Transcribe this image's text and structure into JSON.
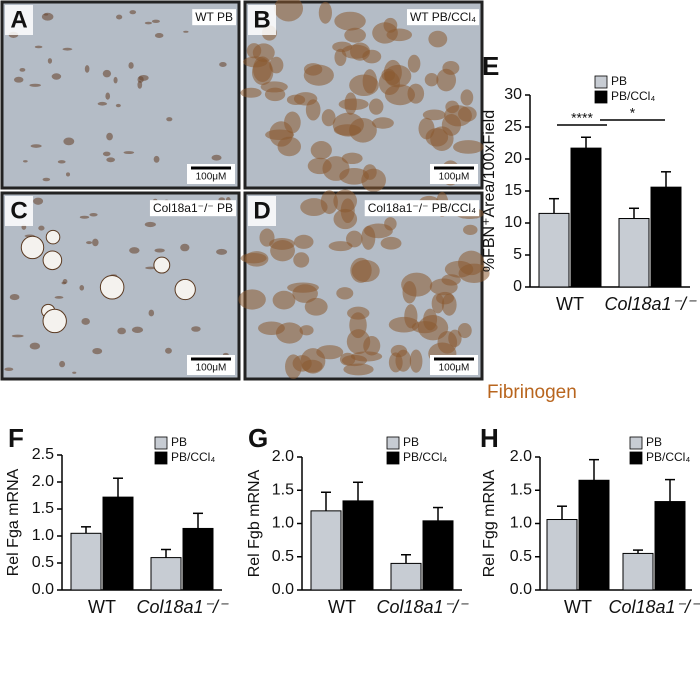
{
  "panels": [
    {
      "letter": "A",
      "label": "WT PB",
      "scale": "100μM"
    },
    {
      "letter": "B",
      "label": "WT PB/CCl₄",
      "scale": "100μM"
    },
    {
      "letter": "C",
      "label": "Col18a1⁻/⁻ PB",
      "scale": "100μM"
    },
    {
      "letter": "D",
      "label": "Col18a1⁻/⁻ PB/CCl₄",
      "scale": "100μM"
    }
  ],
  "stain": "Fibrinogen",
  "chart_data": [
    {
      "type": "bar",
      "panel": "E",
      "ylabel": "%FBN⁺Area/100xField",
      "categories": [
        "WT",
        "Col18a1⁻/⁻"
      ],
      "series": [
        {
          "name": "PB",
          "color": "#c7ccd3",
          "values": [
            11.5,
            10.7
          ],
          "errors": [
            2.3,
            1.6
          ]
        },
        {
          "name": "PB/CCl₄",
          "color": "#000000",
          "values": [
            21.7,
            15.6
          ],
          "errors": [
            1.7,
            2.4
          ]
        }
      ],
      "ylim": [
        0,
        30
      ],
      "yticks": [
        0,
        5,
        10,
        15,
        20,
        25,
        30
      ],
      "annotations": [
        "****",
        "*"
      ]
    },
    {
      "type": "bar",
      "panel": "F",
      "ylabel": "Rel Fga mRNA",
      "categories": [
        "WT",
        "Col18a1⁻/⁻"
      ],
      "series": [
        {
          "name": "PB",
          "color": "#c7ccd3",
          "values": [
            1.05,
            0.6
          ],
          "errors": [
            0.12,
            0.15
          ]
        },
        {
          "name": "PB/CCl₄",
          "color": "#000000",
          "values": [
            1.72,
            1.14
          ],
          "errors": [
            0.35,
            0.28
          ]
        }
      ],
      "ylim": [
        0,
        2.5
      ],
      "yticks": [
        {
          "value": 0,
          "label": "0.0"
        },
        0.5,
        {
          "value": 1,
          "label": "1.0"
        },
        1.5,
        {
          "value": 2,
          "label": "2.0"
        },
        2.5
      ]
    },
    {
      "type": "bar",
      "panel": "G",
      "ylabel": "Rel Fgb mRNA",
      "categories": [
        "WT",
        "Col18a1⁻/⁻"
      ],
      "series": [
        {
          "name": "PB",
          "color": "#c7ccd3",
          "values": [
            1.19,
            0.4
          ],
          "errors": [
            0.28,
            0.13
          ]
        },
        {
          "name": "PB/CCl₄",
          "color": "#000000",
          "values": [
            1.34,
            1.04
          ],
          "errors": [
            0.28,
            0.2
          ]
        }
      ],
      "ylim": [
        0,
        2
      ],
      "yticks": [
        {
          "value": 0,
          "label": "0.0"
        },
        0.5,
        {
          "value": 1,
          "label": "1.0"
        },
        1.5,
        {
          "value": 2,
          "label": "2.0"
        }
      ]
    },
    {
      "type": "bar",
      "panel": "H",
      "ylabel": "Rel Fgg mRNA",
      "categories": [
        "WT",
        "Col18a1⁻/⁻"
      ],
      "series": [
        {
          "name": "PB",
          "color": "#c7ccd3",
          "values": [
            1.06,
            0.55
          ],
          "errors": [
            0.2,
            0.05
          ]
        },
        {
          "name": "PB/CCl₄",
          "color": "#000000",
          "values": [
            1.65,
            1.33
          ],
          "errors": [
            0.31,
            0.33
          ]
        }
      ],
      "ylim": [
        0,
        2
      ],
      "yticks": [
        {
          "value": 0,
          "label": "0.0"
        },
        0.5,
        {
          "value": 1,
          "label": "1.0"
        },
        1.5,
        {
          "value": 2,
          "label": "2.0"
        }
      ]
    }
  ]
}
